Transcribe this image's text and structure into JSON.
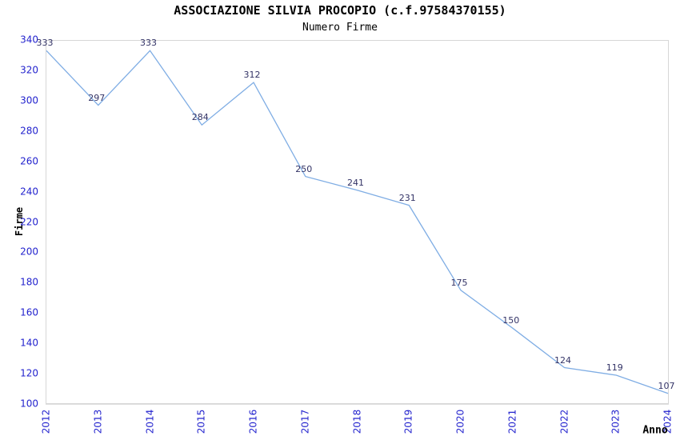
{
  "chart_data": {
    "type": "line",
    "title": "ASSOCIAZIONE SILVIA PROCOPIO (c.f.97584370155)",
    "subtitle": "Numero Firme",
    "xlabel": "Anno",
    "ylabel": "Firme",
    "x": [
      2012,
      2013,
      2014,
      2015,
      2016,
      2017,
      2018,
      2019,
      2020,
      2021,
      2022,
      2023,
      2024
    ],
    "values": [
      333,
      297,
      333,
      284,
      312,
      250,
      241,
      231,
      175,
      150,
      124,
      119,
      107
    ],
    "ylim": [
      100,
      340
    ],
    "ytick_step": 20,
    "yticks": [
      100,
      120,
      140,
      160,
      180,
      200,
      220,
      240,
      260,
      280,
      300,
      320,
      340
    ],
    "grid": "horizontal",
    "legend": "none",
    "value_labels_shown": true,
    "colors": {
      "line": "#7fade4",
      "tick_label": "#2323ce",
      "value_label": "#333366",
      "band": "#f2f2f2",
      "gridline": "#e0e0e0",
      "plot_border": "#d6d6d6",
      "title_text": "#000000"
    }
  }
}
